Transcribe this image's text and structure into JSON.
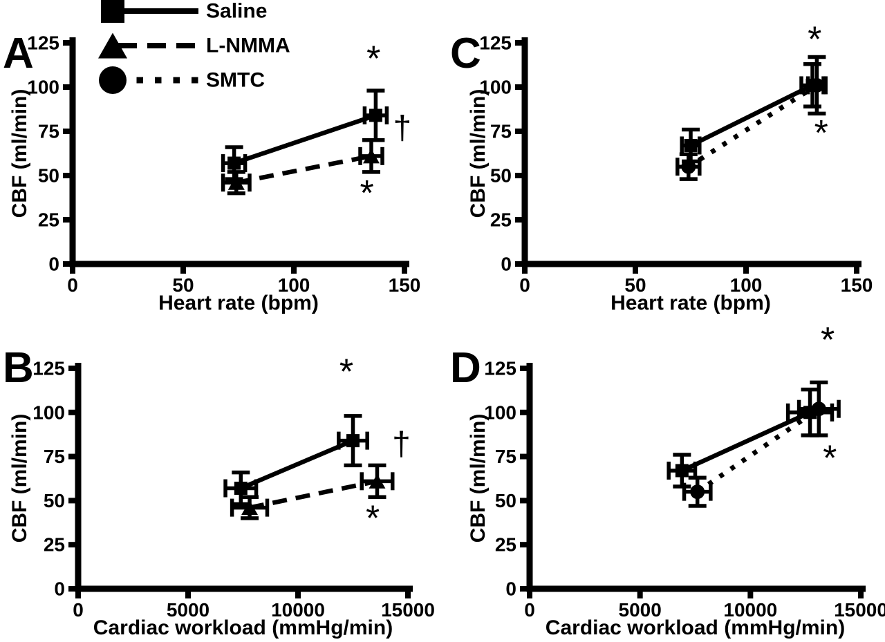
{
  "figure": {
    "background": "#ffffff",
    "ink": "#000000"
  },
  "legend": {
    "items": [
      {
        "label": "Saline",
        "marker": "square",
        "line_style": "solid"
      },
      {
        "label": "L-NMMA",
        "marker": "triangle",
        "line_style": "dashed"
      },
      {
        "label": "SMTC",
        "marker": "circle",
        "line_style": "dotted"
      }
    ]
  },
  "chart_data": [
    {
      "panel": "A",
      "type": "line",
      "xlabel": "Heart rate (bpm)",
      "ylabel": "CBF (ml/min)",
      "xlim": [
        0,
        150
      ],
      "xticks": [
        0,
        50,
        100,
        150
      ],
      "ylim": [
        0,
        125
      ],
      "yticks": [
        0,
        25,
        50,
        75,
        100,
        125
      ],
      "grid": false,
      "series": [
        {
          "name": "Saline",
          "marker": "square",
          "line_style": "solid",
          "points": [
            {
              "x": 73,
              "y": 57,
              "xerr": 5,
              "yerr": 9
            },
            {
              "x": 137,
              "y": 84,
              "xerr": 5,
              "yerr": 14
            }
          ]
        },
        {
          "name": "L-NMMA",
          "marker": "triangle",
          "line_style": "dashed",
          "points": [
            {
              "x": 74,
              "y": 46,
              "xerr": 6,
              "yerr": 6
            },
            {
              "x": 135,
              "y": 61,
              "xerr": 5,
              "yerr": 9
            }
          ]
        }
      ],
      "annotations": [
        {
          "text": "*",
          "x": 136,
          "y": 117
        },
        {
          "text": "†",
          "x": 149,
          "y": 77
        },
        {
          "text": "*",
          "x": 133,
          "y": 41
        }
      ]
    },
    {
      "panel": "B",
      "type": "line",
      "xlabel": "Cardiac workload (mmHg/min)",
      "ylabel": "CBF (ml/min)",
      "xlim": [
        0,
        15000
      ],
      "xticks": [
        0,
        5000,
        10000,
        15000
      ],
      "ylim": [
        0,
        125
      ],
      "yticks": [
        0,
        25,
        50,
        75,
        100,
        125
      ],
      "grid": false,
      "series": [
        {
          "name": "Saline",
          "marker": "square",
          "line_style": "solid",
          "points": [
            {
              "x": 7400,
              "y": 57,
              "xerr": 700,
              "yerr": 9
            },
            {
              "x": 12500,
              "y": 84,
              "xerr": 650,
              "yerr": 14
            }
          ]
        },
        {
          "name": "L-NMMA",
          "marker": "triangle",
          "line_style": "dashed",
          "points": [
            {
              "x": 7800,
              "y": 46,
              "xerr": 800,
              "yerr": 6
            },
            {
              "x": 13600,
              "y": 61,
              "xerr": 700,
              "yerr": 9
            }
          ]
        }
      ],
      "annotations": [
        {
          "text": "*",
          "x": 12200,
          "y": 124
        },
        {
          "text": "†",
          "x": 14700,
          "y": 82
        },
        {
          "text": "*",
          "x": 13400,
          "y": 41
        }
      ]
    },
    {
      "panel": "C",
      "type": "line",
      "xlabel": "Heart rate (bpm)",
      "ylabel": "CBF (ml/min)",
      "xlim": [
        0,
        150
      ],
      "xticks": [
        0,
        50,
        100,
        150
      ],
      "ylim": [
        0,
        125
      ],
      "yticks": [
        0,
        25,
        50,
        75,
        100,
        125
      ],
      "grid": false,
      "series": [
        {
          "name": "Saline",
          "marker": "square",
          "line_style": "solid",
          "points": [
            {
              "x": 75,
              "y": 67,
              "xerr": 4,
              "yerr": 9
            },
            {
              "x": 130,
              "y": 101,
              "xerr": 5,
              "yerr": 12
            }
          ]
        },
        {
          "name": "SMTC",
          "marker": "circle",
          "line_style": "dotted",
          "points": [
            {
              "x": 74,
              "y": 55,
              "xerr": 5,
              "yerr": 7
            },
            {
              "x": 132,
              "y": 101,
              "xerr": 4,
              "yerr": 16
            }
          ]
        }
      ],
      "annotations": [
        {
          "text": "*",
          "x": 131,
          "y": 128
        },
        {
          "text": "*",
          "x": 134,
          "y": 75
        }
      ]
    },
    {
      "panel": "D",
      "type": "line",
      "xlabel": "Cardiac workload (mmHg/min)",
      "ylabel": "CBF (ml/min)",
      "xlim": [
        0,
        15000
      ],
      "xticks": [
        0,
        5000,
        10000,
        15000
      ],
      "ylim": [
        0,
        125
      ],
      "yticks": [
        0,
        25,
        50,
        75,
        100,
        125
      ],
      "grid": false,
      "series": [
        {
          "name": "Saline",
          "marker": "square",
          "line_style": "solid",
          "points": [
            {
              "x": 6900,
              "y": 67,
              "xerr": 600,
              "yerr": 9
            },
            {
              "x": 12700,
              "y": 100,
              "xerr": 1000,
              "yerr": 13
            }
          ]
        },
        {
          "name": "SMTC",
          "marker": "circle",
          "line_style": "dotted",
          "points": [
            {
              "x": 7600,
              "y": 55,
              "xerr": 600,
              "yerr": 8
            },
            {
              "x": 13100,
              "y": 102,
              "xerr": 900,
              "yerr": 15
            }
          ]
        }
      ],
      "annotations": [
        {
          "text": "*",
          "x": 13500,
          "y": 142
        },
        {
          "text": "*",
          "x": 13600,
          "y": 75
        }
      ]
    }
  ]
}
